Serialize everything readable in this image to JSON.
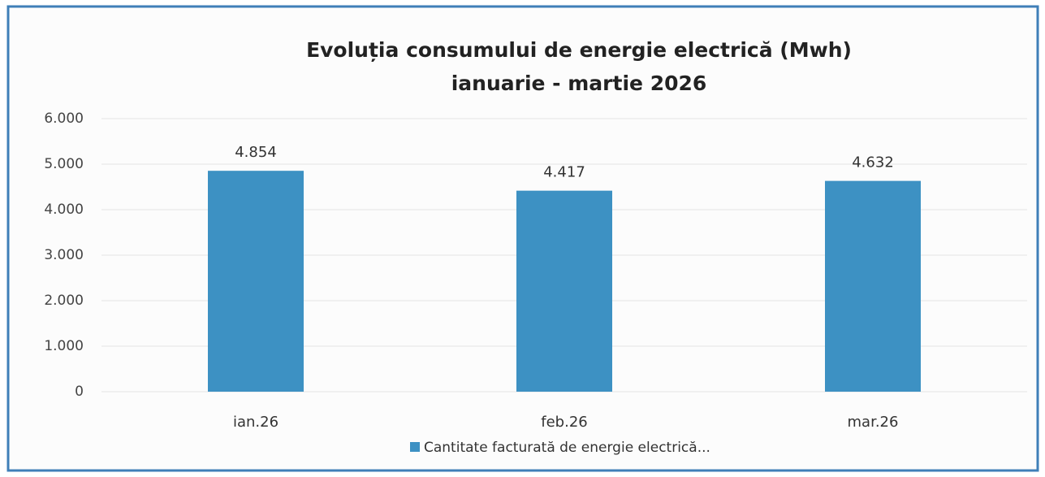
{
  "chart_data": {
    "type": "bar",
    "title": "Evoluția consumului de energie electrică (Mwh)",
    "subtitle": "ianuarie - martie 2026",
    "categories": [
      "ian.26",
      "feb.26",
      "mar.26"
    ],
    "series": [
      {
        "name": "Cantitate facturată de energie electrică...",
        "color": "#3d91c3",
        "values": [
          4854,
          4417,
          4632
        ],
        "value_labels": [
          "4.854",
          "4.417",
          "4.632"
        ]
      }
    ],
    "ylim": [
      0,
      6000
    ],
    "yticks": [
      0,
      {
        "value": 1000,
        "label": "1.000"
      },
      {
        "value": 2000,
        "label": "2.000"
      },
      {
        "value": 3000,
        "label": "3.000"
      },
      {
        "value": 4000,
        "label": "4.000"
      },
      {
        "value": 5000,
        "label": "5.000"
      },
      {
        "value": 6000,
        "label": "6.000"
      }
    ],
    "grid": true,
    "legend": "bottom"
  }
}
